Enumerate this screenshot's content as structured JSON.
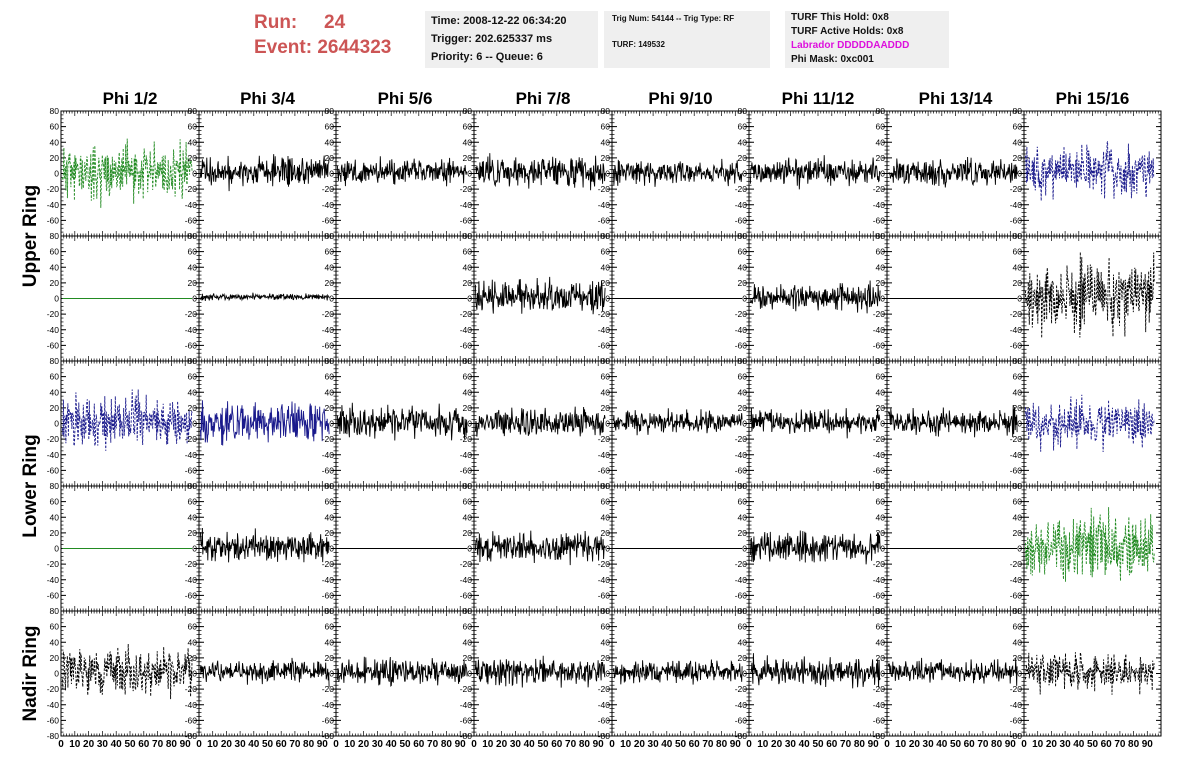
{
  "header": {
    "run_label": "Run:",
    "run_value": "24",
    "event_label": "Event:",
    "event_value": "2644323",
    "time": "Time: 2008-12-22 06:34:20",
    "trigger": "Trigger: 202.625337 ms",
    "priority": "Priority: 6 -- Queue: 6",
    "trig_num": "Trig Num: 54144 -- Trig Type: RF",
    "turf": "TURF: 149532",
    "turf_hold": "TURF This Hold: 0x8",
    "turf_active": "TURF Active Holds: 0x8",
    "labrador": "Labrador DDDDDAADDD",
    "phi_mask": "Phi Mask: 0xc001"
  },
  "colors": {
    "run_text": "#cc5555",
    "labrador_text": "#dd11dd",
    "trace_black": "#000000",
    "trace_green": "#228b22",
    "trace_blue": "#1a1a8c"
  },
  "chart_data": {
    "type": "line",
    "title": "",
    "columns": [
      "Phi 1/2",
      "Phi 3/4",
      "Phi 5/6",
      "Phi 7/8",
      "Phi 9/10",
      "Phi 11/12",
      "Phi 13/14",
      "Phi 15/16"
    ],
    "rings": [
      "Upper Ring",
      "Lower Ring",
      "Nadir Ring"
    ],
    "xlim": [
      0,
      100
    ],
    "ylim": [
      -80,
      80
    ],
    "x_ticks": [
      0,
      10,
      20,
      30,
      40,
      50,
      60,
      70,
      80,
      90
    ],
    "x_tick_labels": [
      "0",
      "10",
      "20",
      "30",
      "40",
      "50",
      "60",
      "70",
      "80",
      "90"
    ],
    "y_ticks": [
      -80,
      -60,
      -40,
      -20,
      0,
      20,
      40,
      60,
      80
    ],
    "y_tick_labels": [
      "-80",
      "-60",
      "-40",
      "-20",
      "0",
      "20",
      "40",
      "60",
      "80"
    ],
    "panels": [
      [
        {
          "color": "green",
          "style": "dashed",
          "amp": 26,
          "seed": 11
        },
        {
          "color": "black",
          "style": "solid",
          "amp": 14,
          "seed": 12
        },
        {
          "color": "black",
          "style": "solid",
          "amp": 12,
          "seed": 13
        },
        {
          "color": "black",
          "style": "solid",
          "amp": 14,
          "seed": 14
        },
        {
          "color": "black",
          "style": "solid",
          "amp": 11,
          "seed": 15
        },
        {
          "color": "black",
          "style": "solid",
          "amp": 12,
          "seed": 16
        },
        {
          "color": "black",
          "style": "solid",
          "amp": 12,
          "seed": 17
        },
        {
          "color": "blue",
          "style": "dashed",
          "amp": 22,
          "seed": 18
        }
      ],
      [
        {
          "color": "green",
          "style": "solid",
          "amp": 0,
          "seed": 21
        },
        {
          "color": "black",
          "style": "solid",
          "amp": 3,
          "seed": 22
        },
        {
          "color": "black",
          "style": "solid",
          "amp": 0,
          "seed": 23
        },
        {
          "color": "black",
          "style": "solid",
          "amp": 15,
          "seed": 24
        },
        {
          "color": "black",
          "style": "solid",
          "amp": 0,
          "seed": 25
        },
        {
          "color": "black",
          "style": "solid",
          "amp": 12,
          "seed": 26
        },
        {
          "color": "black",
          "style": "solid",
          "amp": 0,
          "seed": 27
        },
        {
          "color": "black",
          "style": "dashed",
          "amp": 32,
          "seed": 28
        }
      ],
      [
        {
          "color": "blue",
          "style": "dashed",
          "amp": 24,
          "seed": 31
        },
        {
          "color": "blue",
          "style": "solid",
          "amp": 18,
          "seed": 32
        },
        {
          "color": "black",
          "style": "solid",
          "amp": 15,
          "seed": 33
        },
        {
          "color": "black",
          "style": "solid",
          "amp": 13,
          "seed": 34
        },
        {
          "color": "black",
          "style": "solid",
          "amp": 10,
          "seed": 35
        },
        {
          "color": "black",
          "style": "solid",
          "amp": 12,
          "seed": 36
        },
        {
          "color": "black",
          "style": "solid",
          "amp": 12,
          "seed": 37
        },
        {
          "color": "blue",
          "style": "dashed",
          "amp": 22,
          "seed": 38
        }
      ],
      [
        {
          "color": "green",
          "style": "solid",
          "amp": 0,
          "seed": 41
        },
        {
          "color": "black",
          "style": "solid",
          "amp": 14,
          "seed": 42
        },
        {
          "color": "black",
          "style": "solid",
          "amp": 0,
          "seed": 43
        },
        {
          "color": "black",
          "style": "solid",
          "amp": 14,
          "seed": 44
        },
        {
          "color": "black",
          "style": "solid",
          "amp": 0,
          "seed": 45
        },
        {
          "color": "black",
          "style": "solid",
          "amp": 14,
          "seed": 46
        },
        {
          "color": "black",
          "style": "solid",
          "amp": 0,
          "seed": 47
        },
        {
          "color": "green",
          "style": "dashed",
          "amp": 32,
          "seed": 48
        }
      ],
      [
        {
          "color": "black",
          "style": "dashed",
          "amp": 22,
          "seed": 51
        },
        {
          "color": "black",
          "style": "solid",
          "amp": 11,
          "seed": 52
        },
        {
          "color": "black",
          "style": "solid",
          "amp": 12,
          "seed": 53
        },
        {
          "color": "black",
          "style": "solid",
          "amp": 13,
          "seed": 54
        },
        {
          "color": "black",
          "style": "solid",
          "amp": 10,
          "seed": 55
        },
        {
          "color": "black",
          "style": "solid",
          "amp": 13,
          "seed": 56
        },
        {
          "color": "black",
          "style": "solid",
          "amp": 11,
          "seed": 57
        },
        {
          "color": "black",
          "style": "dashed",
          "amp": 18,
          "seed": 58
        }
      ]
    ]
  }
}
